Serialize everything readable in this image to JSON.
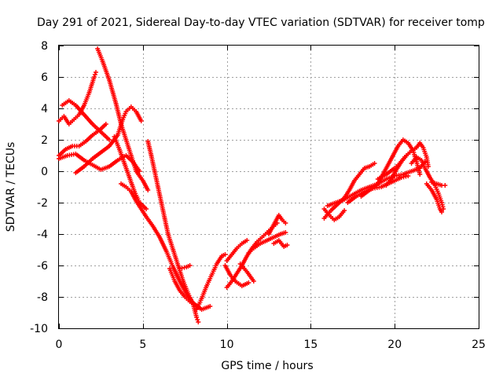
{
  "chart_data": {
    "type": "scatter",
    "title": "Day 291 of 2021, Sidereal Day-to-day VTEC variation (SDTVAR) for receiver tomp",
    "xlabel": "GPS time / hours",
    "ylabel": "SDTVAR / TECUs",
    "xlim": [
      0,
      25
    ],
    "ylim": [
      -10,
      8
    ],
    "x_ticks": [
      "0",
      "5",
      "10",
      "15",
      "20",
      "25"
    ],
    "y_ticks": [
      "-10",
      "-8",
      "-6",
      "-4",
      "-2",
      "0",
      "2",
      "4",
      "6",
      "8"
    ],
    "grid": true,
    "legend": "none",
    "marker": "+",
    "color": "#ff0000",
    "series": [
      {
        "points": [
          [
            0.0,
            3.2
          ],
          [
            0.3,
            3.5
          ],
          [
            0.6,
            3.0
          ],
          [
            0.9,
            3.3
          ],
          [
            1.2,
            3.6
          ],
          [
            1.5,
            4.2
          ],
          [
            1.8,
            5.0
          ],
          [
            2.1,
            6.0
          ],
          [
            2.2,
            6.3
          ]
        ]
      },
      {
        "points": [
          [
            0.2,
            4.2
          ],
          [
            0.6,
            4.5
          ],
          [
            1.0,
            4.2
          ],
          [
            1.5,
            3.6
          ],
          [
            2.0,
            3.0
          ],
          [
            2.5,
            2.5
          ],
          [
            3.0,
            2.0
          ]
        ]
      },
      {
        "points": [
          [
            0.0,
            1.0
          ],
          [
            0.4,
            1.4
          ],
          [
            0.8,
            1.6
          ],
          [
            1.2,
            1.6
          ],
          [
            1.6,
            1.9
          ],
          [
            2.0,
            2.3
          ],
          [
            2.4,
            2.6
          ],
          [
            2.8,
            3.0
          ]
        ]
      },
      {
        "points": [
          [
            0.0,
            0.8
          ],
          [
            0.5,
            1.0
          ],
          [
            1.0,
            1.1
          ],
          [
            1.5,
            0.7
          ],
          [
            2.0,
            0.4
          ],
          [
            2.5,
            0.1
          ],
          [
            3.0,
            0.3
          ],
          [
            3.5,
            0.7
          ],
          [
            4.0,
            1.0
          ],
          [
            4.4,
            0.6
          ],
          [
            4.8,
            0.0
          ]
        ]
      },
      {
        "points": [
          [
            2.3,
            7.8
          ],
          [
            2.6,
            7.0
          ],
          [
            3.0,
            5.8
          ],
          [
            3.4,
            4.3
          ],
          [
            3.7,
            3.0
          ],
          [
            4.0,
            2.0
          ],
          [
            4.3,
            1.0
          ],
          [
            4.6,
            0.0
          ],
          [
            5.0,
            -0.6
          ],
          [
            5.3,
            -1.2
          ]
        ]
      },
      {
        "points": [
          [
            1.0,
            -0.1
          ],
          [
            1.5,
            0.3
          ],
          [
            2.0,
            0.8
          ],
          [
            2.5,
            1.2
          ],
          [
            3.0,
            1.6
          ],
          [
            3.5,
            2.3
          ],
          [
            3.8,
            3.3
          ],
          [
            4.0,
            3.8
          ],
          [
            4.3,
            4.1
          ],
          [
            4.6,
            3.8
          ],
          [
            4.9,
            3.2
          ]
        ]
      },
      {
        "points": [
          [
            3.7,
            -0.8
          ],
          [
            4.0,
            -1.0
          ],
          [
            4.3,
            -1.3
          ],
          [
            4.6,
            -1.9
          ],
          [
            4.9,
            -2.4
          ],
          [
            5.2,
            -2.9
          ],
          [
            5.6,
            -3.5
          ],
          [
            6.0,
            -4.2
          ],
          [
            6.4,
            -5.1
          ],
          [
            6.8,
            -6.1
          ],
          [
            7.2,
            -7.0
          ],
          [
            7.6,
            -7.8
          ],
          [
            8.0,
            -8.4
          ],
          [
            8.5,
            -8.8
          ],
          [
            9.0,
            -8.6
          ]
        ]
      },
      {
        "points": [
          [
            3.3,
            2.2
          ],
          [
            3.6,
            1.4
          ],
          [
            3.9,
            0.5
          ],
          [
            4.2,
            -0.4
          ],
          [
            4.5,
            -1.3
          ],
          [
            4.8,
            -2.0
          ],
          [
            5.2,
            -2.4
          ]
        ]
      },
      {
        "points": [
          [
            5.3,
            1.9
          ],
          [
            5.5,
            1.0
          ],
          [
            5.7,
            0.0
          ],
          [
            5.9,
            -1.0
          ],
          [
            6.1,
            -2.0
          ],
          [
            6.3,
            -3.0
          ],
          [
            6.5,
            -4.0
          ],
          [
            6.8,
            -5.0
          ],
          [
            7.1,
            -6.0
          ],
          [
            7.4,
            -7.0
          ],
          [
            7.7,
            -7.8
          ],
          [
            8.0,
            -8.5
          ],
          [
            8.2,
            -9.3
          ],
          [
            8.3,
            -9.6
          ]
        ]
      },
      {
        "points": [
          [
            6.6,
            -6.2
          ],
          [
            6.9,
            -7.0
          ],
          [
            7.2,
            -7.6
          ],
          [
            7.5,
            -8.0
          ],
          [
            7.8,
            -8.3
          ],
          [
            8.1,
            -8.5
          ]
        ]
      },
      {
        "points": [
          [
            7.2,
            -6.2
          ],
          [
            7.6,
            -6.1
          ],
          [
            7.8,
            -6.0
          ]
        ]
      },
      {
        "points": [
          [
            8.2,
            -8.8
          ],
          [
            8.5,
            -8.1
          ],
          [
            8.8,
            -7.3
          ],
          [
            9.1,
            -6.6
          ],
          [
            9.4,
            -5.9
          ],
          [
            9.7,
            -5.4
          ],
          [
            9.9,
            -5.3
          ]
        ]
      },
      {
        "points": [
          [
            9.9,
            -6.0
          ],
          [
            10.2,
            -6.6
          ],
          [
            10.5,
            -7.0
          ],
          [
            10.9,
            -7.3
          ],
          [
            11.3,
            -7.1
          ]
        ]
      },
      {
        "points": [
          [
            10.0,
            -7.4
          ],
          [
            10.3,
            -7.0
          ],
          [
            10.6,
            -6.5
          ],
          [
            10.9,
            -6.0
          ],
          [
            11.2,
            -5.4
          ],
          [
            11.5,
            -4.9
          ],
          [
            11.8,
            -4.5
          ],
          [
            12.1,
            -4.2
          ],
          [
            12.4,
            -3.9
          ],
          [
            12.7,
            -3.6
          ],
          [
            13.0,
            -3.3
          ]
        ]
      },
      {
        "points": [
          [
            10.0,
            -5.7
          ],
          [
            10.3,
            -5.3
          ],
          [
            10.6,
            -4.9
          ],
          [
            10.9,
            -4.6
          ],
          [
            11.2,
            -4.4
          ]
        ]
      },
      {
        "points": [
          [
            10.8,
            -5.9
          ],
          [
            11.2,
            -6.4
          ],
          [
            11.6,
            -7.0
          ]
        ]
      },
      {
        "points": [
          [
            11.3,
            -5.2
          ],
          [
            11.6,
            -4.9
          ],
          [
            12.0,
            -4.6
          ],
          [
            12.4,
            -4.4
          ],
          [
            12.8,
            -4.2
          ],
          [
            13.2,
            -4.0
          ],
          [
            13.5,
            -3.9
          ]
        ]
      },
      {
        "points": [
          [
            12.5,
            -4.0
          ],
          [
            12.8,
            -3.4
          ],
          [
            13.1,
            -2.8
          ],
          [
            13.3,
            -3.1
          ],
          [
            13.5,
            -3.3
          ]
        ]
      },
      {
        "points": [
          [
            12.8,
            -4.6
          ],
          [
            13.1,
            -4.4
          ],
          [
            13.4,
            -4.8
          ],
          [
            13.6,
            -4.7
          ]
        ]
      },
      {
        "points": [
          [
            15.8,
            -2.4
          ],
          [
            16.1,
            -2.8
          ],
          [
            16.4,
            -3.1
          ],
          [
            16.7,
            -2.9
          ],
          [
            17.0,
            -2.5
          ]
        ]
      },
      {
        "points": [
          [
            15.8,
            -3.0
          ],
          [
            16.2,
            -2.5
          ],
          [
            16.6,
            -2.1
          ],
          [
            17.0,
            -1.7
          ],
          [
            17.3,
            -1.2
          ],
          [
            17.6,
            -0.6
          ],
          [
            17.9,
            -0.2
          ],
          [
            18.2,
            0.2
          ],
          [
            18.5,
            0.3
          ],
          [
            18.8,
            0.5
          ]
        ]
      },
      {
        "points": [
          [
            16.0,
            -2.2
          ],
          [
            16.5,
            -2.0
          ],
          [
            17.0,
            -1.8
          ],
          [
            17.5,
            -1.5
          ],
          [
            18.0,
            -1.2
          ],
          [
            18.5,
            -1.0
          ],
          [
            19.0,
            -0.8
          ],
          [
            19.5,
            -0.5
          ],
          [
            20.0,
            -0.3
          ],
          [
            20.5,
            -0.2
          ],
          [
            21.0,
            0.0
          ],
          [
            21.5,
            0.2
          ],
          [
            21.8,
            0.6
          ]
        ]
      },
      {
        "points": [
          [
            17.2,
            -2.0
          ],
          [
            17.7,
            -1.6
          ],
          [
            18.2,
            -1.3
          ],
          [
            18.7,
            -1.1
          ],
          [
            19.2,
            -1.0
          ],
          [
            19.6,
            -0.8
          ],
          [
            20.0,
            -0.6
          ],
          [
            20.4,
            -0.4
          ],
          [
            20.8,
            -0.3
          ]
        ]
      },
      {
        "points": [
          [
            18.0,
            -1.6
          ],
          [
            18.5,
            -1.2
          ],
          [
            19.0,
            -0.8
          ],
          [
            19.3,
            -0.2
          ],
          [
            19.6,
            0.4
          ],
          [
            19.9,
            1.0
          ],
          [
            20.2,
            1.6
          ],
          [
            20.5,
            2.0
          ],
          [
            20.8,
            1.8
          ],
          [
            21.1,
            1.3
          ],
          [
            21.3,
            0.6
          ],
          [
            21.5,
            -0.2
          ]
        ]
      },
      {
        "points": [
          [
            19.5,
            -0.9
          ],
          [
            19.8,
            -0.5
          ],
          [
            20.1,
            0.1
          ],
          [
            20.4,
            0.6
          ],
          [
            20.7,
            1.0
          ],
          [
            21.0,
            1.3
          ],
          [
            21.3,
            1.5
          ],
          [
            21.5,
            1.8
          ],
          [
            21.7,
            1.5
          ],
          [
            21.9,
            0.9
          ],
          [
            22.0,
            0.3
          ]
        ]
      },
      {
        "points": [
          [
            21.0,
            0.5
          ],
          [
            21.3,
            0.9
          ],
          [
            21.6,
            0.7
          ],
          [
            21.8,
            0.2
          ],
          [
            22.1,
            -0.4
          ],
          [
            22.4,
            -0.9
          ],
          [
            22.6,
            -1.4
          ],
          [
            22.8,
            -2.0
          ],
          [
            22.9,
            -2.4
          ]
        ]
      },
      {
        "points": [
          [
            22.2,
            -0.7
          ],
          [
            22.5,
            -0.8
          ],
          [
            22.8,
            -0.9
          ],
          [
            23.0,
            -0.9
          ]
        ]
      },
      {
        "points": [
          [
            21.9,
            -0.8
          ],
          [
            22.2,
            -1.2
          ],
          [
            22.5,
            -1.8
          ],
          [
            22.7,
            -2.4
          ],
          [
            22.8,
            -2.6
          ]
        ]
      },
      {
        "points": [
          [
            19.0,
            -0.5
          ],
          [
            19.5,
            -0.2
          ],
          [
            20.0,
            0.2
          ],
          [
            20.3,
            0.5
          ],
          [
            20.6,
            0.9
          ],
          [
            20.9,
            1.2
          ]
        ]
      }
    ]
  }
}
